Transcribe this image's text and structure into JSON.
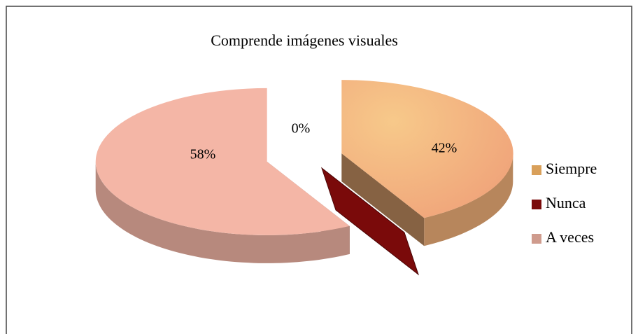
{
  "chart_data": {
    "type": "pie",
    "title": "Comprende imágenes visuales",
    "categories": [
      "Siempre",
      "Nunca",
      "A veces"
    ],
    "values": [
      42,
      0,
      58
    ],
    "value_labels": [
      "42%",
      "0%",
      "58%"
    ],
    "colors": [
      "#f4b27a",
      "#7a0a0a",
      "#f4b6a6"
    ],
    "legend": "right"
  }
}
